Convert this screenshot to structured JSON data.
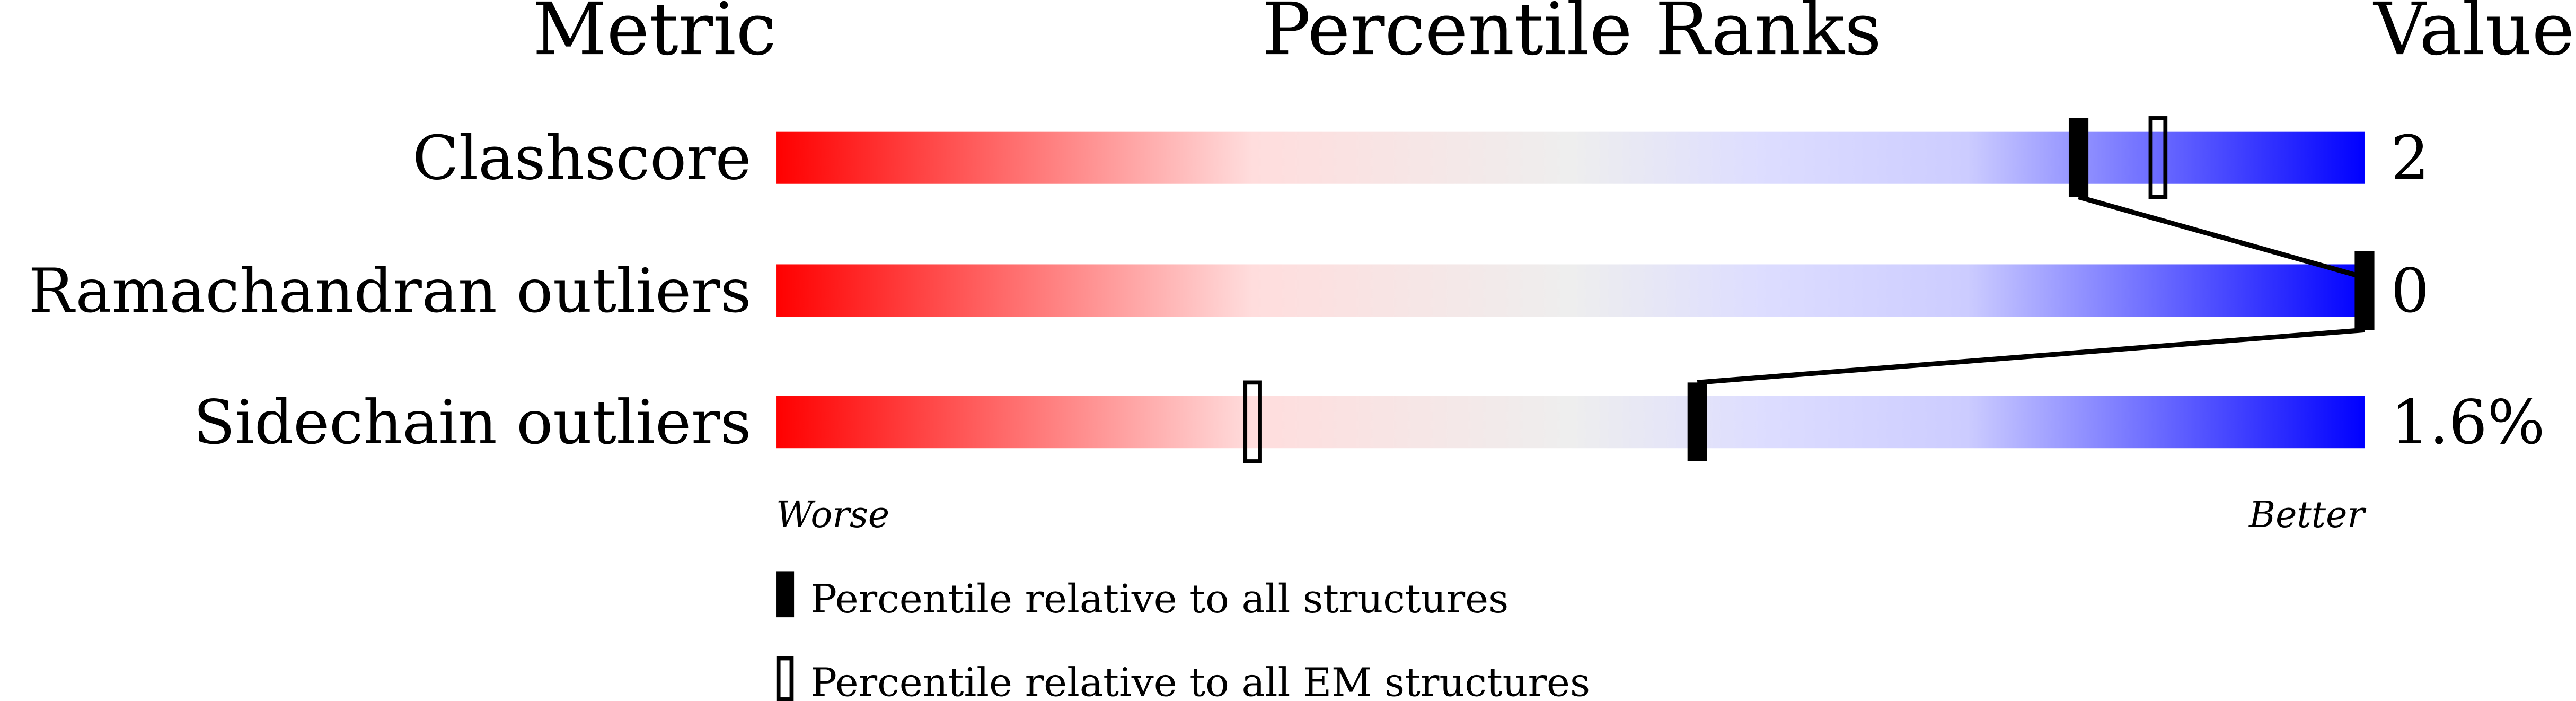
{
  "chart_data": {
    "type": "bar",
    "headers": {
      "metric": "Metric",
      "ranks": "Percentile Ranks",
      "value": "Value"
    },
    "metrics": [
      {
        "name": "Clashscore",
        "value": "2",
        "percentile_all": 82,
        "percentile_em": 87
      },
      {
        "name": "Ramachandran outliers",
        "value": "0",
        "percentile_all": 100,
        "percentile_em": null
      },
      {
        "name": "Sidechain outliers",
        "value": "1.6%",
        "percentile_all": 58,
        "percentile_em": 30
      }
    ],
    "xlim": [
      0,
      100
    ],
    "axis_labels": {
      "worse": "Worse",
      "better": "Better"
    },
    "legend": {
      "all": "Percentile relative to all structures",
      "em": "Percentile relative to all EM structures"
    },
    "colors": {
      "worse": "#ff0000",
      "middle": "#eeeeee",
      "better": "#0000ff",
      "marker": "#000000"
    }
  }
}
